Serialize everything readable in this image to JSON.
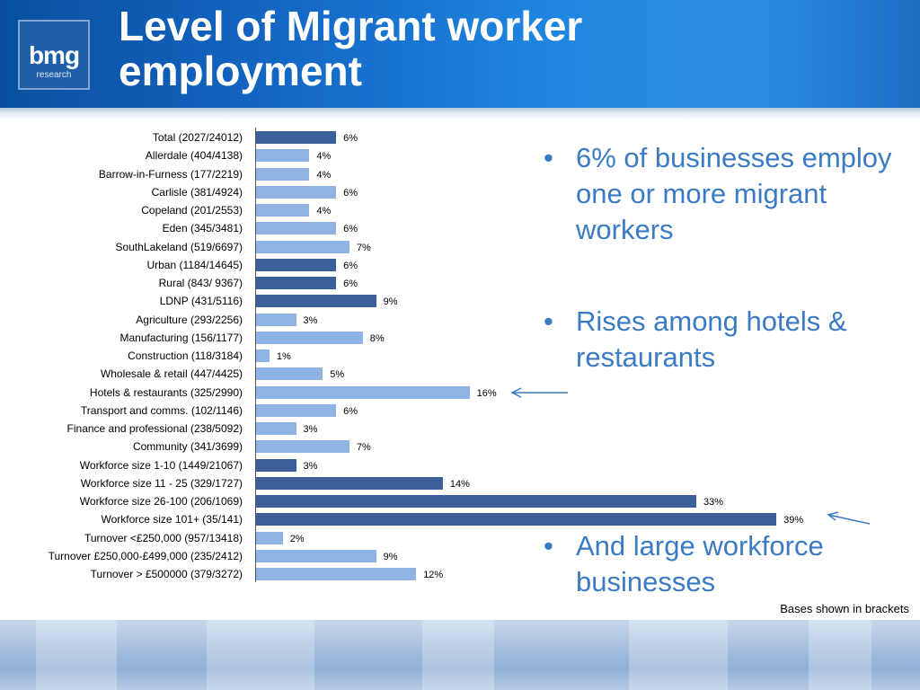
{
  "header": {
    "title_line1": "Level of Migrant worker",
    "title_line2": "employment",
    "logo_main": "bmg",
    "logo_sub": "research"
  },
  "colors": {
    "header_blue": "#1466c4",
    "bar_dark": "#3a5f99",
    "bar_light": "#8fb3e3",
    "bullet_text": "#3b7bc4"
  },
  "bullets": [
    {
      "symbol": "•",
      "text": "6% of businesses employ one or more migrant workers"
    },
    {
      "symbol": "•",
      "text": "Rises among hotels & restaurants"
    },
    {
      "symbol": "•",
      "text": "And large workforce businesses"
    }
  ],
  "footnote": "Bases shown in brackets",
  "chart_data": {
    "type": "bar",
    "orientation": "horizontal",
    "title": "",
    "xlabel": "",
    "ylabel": "",
    "xlim": [
      0,
      40
    ],
    "grid": false,
    "categories": [
      "Total (2027/24012)",
      "Allerdale (404/4138)",
      "Barrow-in-Furness (177/2219)",
      "Carlisle (381/4924)",
      "Copeland (201/2553)",
      "Eden (345/3481)",
      "SouthLakeland (519/6697)",
      "Urban (1184/14645)",
      "Rural (843/ 9367)",
      "LDNP (431/5116)",
      "Agriculture (293/2256)",
      "Manufacturing (156/1177)",
      "Construction (118/3184)",
      "Wholesale & retail (447/4425)",
      "Hotels & restaurants (325/2990)",
      "Transport and comms. (102/1146)",
      "Finance and professional (238/5092)",
      "Community (341/3699)",
      "Workforce size 1-10 (1449/21067)",
      "Workforce size 11 - 25 (329/1727)",
      "Workforce size 26-100 (206/1069)",
      "Workforce size 101+ (35/141)",
      "Turnover <£250,000 (957/13418)",
      "Turnover £250,000-£499,000 (235/2412)",
      "Turnover > £500000 (379/3272)"
    ],
    "values": [
      6,
      4,
      4,
      6,
      4,
      6,
      7,
      6,
      6,
      9,
      3,
      8,
      1,
      5,
      16,
      6,
      3,
      7,
      3,
      14,
      33,
      39,
      2,
      9,
      12
    ],
    "value_labels": [
      "6%",
      "4%",
      "4%",
      "6%",
      "4%",
      "6%",
      "7%",
      "6%",
      "6%",
      "9%",
      "3%",
      "8%",
      "1%",
      "5%",
      "16%",
      "6%",
      "3%",
      "7%",
      "3%",
      "14%",
      "33%",
      "39%",
      "2%",
      "9%",
      "12%"
    ],
    "bar_shade": [
      "dark",
      "light",
      "light",
      "light",
      "light",
      "light",
      "light",
      "dark",
      "dark",
      "dark",
      "light",
      "light",
      "light",
      "light",
      "light",
      "light",
      "light",
      "light",
      "dark",
      "dark",
      "dark",
      "dark",
      "light",
      "light",
      "light"
    ],
    "highlighted_categories": [
      "Hotels & restaurants (325/2990)",
      "Workforce size 101+ (35/141)"
    ]
  }
}
